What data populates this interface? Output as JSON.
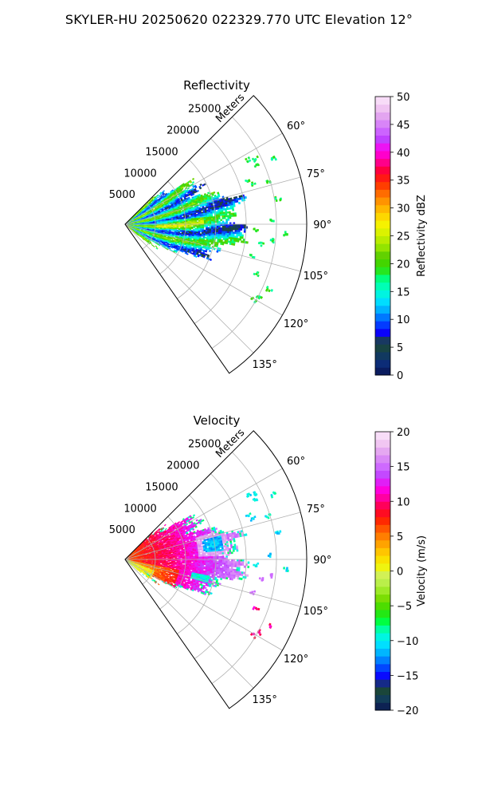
{
  "figure": {
    "title": "SKYLER-HU  20250620  022329.770 UTC Elevation 12°"
  },
  "chart_data": [
    {
      "type": "heatmap",
      "projection": "polar-sector",
      "title": "Reflectivity",
      "radial_axis_label": "Meters",
      "radial_range": [
        0,
        30000
      ],
      "radial_ticks": [
        5000,
        10000,
        15000,
        20000,
        25000
      ],
      "radial_tick_labels": [
        "5000",
        "10000",
        "15000",
        "20000",
        "25000"
      ],
      "azimuth_range_deg": [
        45,
        145
      ],
      "azimuth_ticks_deg": [
        60,
        75,
        90,
        105,
        120,
        135
      ],
      "azimuth_tick_labels": [
        "60°",
        "75°",
        "90°",
        "105°",
        "120°",
        "135°"
      ],
      "grid": true,
      "colorbar": {
        "label": "Reflectivity dBZ",
        "range": [
          0,
          50
        ],
        "ticks": [
          0,
          5,
          10,
          15,
          20,
          25,
          30,
          35,
          40,
          45,
          50
        ],
        "tick_labels": [
          "0",
          "5",
          "10",
          "15",
          "20",
          "25",
          "30",
          "35",
          "40",
          "45",
          "50"
        ]
      },
      "echo_summary": {
        "main_echo_extent_m": 19000,
        "main_echo_range_dBZ": [
          15,
          28
        ],
        "scattered_echo_range_dBZ": [
          12,
          22
        ]
      }
    },
    {
      "type": "heatmap",
      "projection": "polar-sector",
      "title": "Velocity",
      "radial_axis_label": "Meters",
      "radial_range": [
        0,
        30000
      ],
      "radial_ticks": [
        5000,
        10000,
        15000,
        20000,
        25000
      ],
      "radial_tick_labels": [
        "5000",
        "10000",
        "15000",
        "20000",
        "25000"
      ],
      "azimuth_range_deg": [
        45,
        145
      ],
      "azimuth_ticks_deg": [
        60,
        75,
        90,
        105,
        120,
        135
      ],
      "azimuth_tick_labels": [
        "60°",
        "75°",
        "90°",
        "105°",
        "120°",
        "135°"
      ],
      "grid": true,
      "colorbar": {
        "label": "Velocity (m/s)",
        "range": [
          -20,
          20
        ],
        "ticks": [
          -20,
          -15,
          -10,
          -5,
          0,
          5,
          10,
          15,
          20
        ],
        "tick_labels": [
          "−20",
          "−15",
          "−10",
          "−5",
          "0",
          "5",
          "10",
          "15",
          "20"
        ]
      },
      "echo_summary": {
        "near_range_velocity_ms": [
          5,
          12
        ],
        "mid_range_velocity_ms": [
          12,
          17
        ],
        "outbound_pockets_ms": [
          -14,
          -8
        ]
      }
    }
  ],
  "colormap": {
    "reflectivity_stops": [
      "#0a1450",
      "#0b2a7a",
      "#123c5a",
      "#1d4a2e",
      "#0a00ff",
      "#0055ff",
      "#00aaff",
      "#00e5ff",
      "#00ffcc",
      "#00ff80",
      "#33dd00",
      "#55cc00",
      "#99e600",
      "#ccf000",
      "#f5f500",
      "#ffd000",
      "#ffa000",
      "#ff6a00",
      "#ff2a00",
      "#ff0030",
      "#ff0099",
      "#ff00ee",
      "#c040ff",
      "#d070ff",
      "#e09cf0",
      "#f2c8f2",
      "#fbe8fb"
    ],
    "velocity_stops": [
      "#0a1450",
      "#123c5a",
      "#1d4a2e",
      "#0a00ff",
      "#0055ff",
      "#00aaff",
      "#00e5ff",
      "#00ffcc",
      "#00ff40",
      "#33dd00",
      "#77dd00",
      "#aaee33",
      "#ccf066",
      "#f5f500",
      "#ffd000",
      "#ffa000",
      "#ff6a00",
      "#ff2a00",
      "#ff0030",
      "#ff0099",
      "#ff00ee",
      "#c040ff",
      "#d070ff",
      "#e09cf0",
      "#f2c8f2",
      "#fbe8fb"
    ]
  }
}
